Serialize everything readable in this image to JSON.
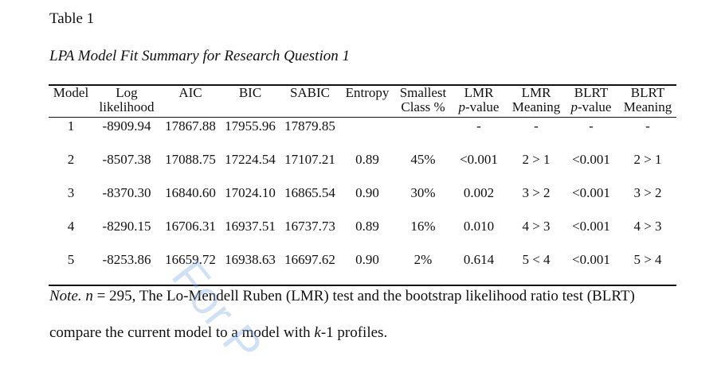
{
  "table_label": "Table 1",
  "table_title": "LPA Model Fit Summary for Research Question 1",
  "headers": [
    {
      "l1": "Model",
      "l2": ""
    },
    {
      "l1": "Log",
      "l2": "likelihood"
    },
    {
      "l1": "AIC",
      "l2": ""
    },
    {
      "l1": "BIC",
      "l2": ""
    },
    {
      "l1": "SABIC",
      "l2": ""
    },
    {
      "l1": "Entropy",
      "l2": ""
    },
    {
      "l1": "Smallest",
      "l2": "Class %"
    },
    {
      "l1": "LMR",
      "l2": "p-value"
    },
    {
      "l1": "LMR",
      "l2": "Meaning"
    },
    {
      "l1": "BLRT",
      "l2": "p-value"
    },
    {
      "l1": "BLRT",
      "l2": "Meaning"
    }
  ],
  "rows": [
    [
      "1",
      "-8909.94",
      "17867.88",
      "17955.96",
      "17879.85",
      "",
      "",
      "-",
      "-",
      "-",
      "-"
    ],
    [
      "2",
      "-8507.38",
      "17088.75",
      "17224.54",
      "17107.21",
      "0.89",
      "45%",
      "<0.001",
      "2 > 1",
      "<0.001",
      "2 > 1"
    ],
    [
      "3",
      "-8370.30",
      "16840.60",
      "17024.10",
      "16865.54",
      "0.90",
      "30%",
      "0.002",
      "3 > 2",
      "<0.001",
      "3 > 2"
    ],
    [
      "4",
      "-8290.15",
      "16706.31",
      "16937.51",
      "16737.73",
      "0.89",
      "16%",
      "0.010",
      "4 > 3",
      "<0.001",
      "4 > 3"
    ],
    [
      "5",
      "-8253.86",
      "16659.72",
      "16938.63",
      "16697.62",
      "0.90",
      "2%",
      "0.614",
      "5 < 4",
      "<0.001",
      "5 > 4"
    ]
  ],
  "note": {
    "label": "Note.",
    "n_symbol": "n",
    "n_text": " = 295, The Lo-Mendell Ruben (LMR) test and the bootstrap likelihood ratio test (BLRT)",
    "line2_a": "compare the current model to a model with ",
    "k": "k",
    "line2_b": "-1 profiles."
  },
  "watermark": "For P"
}
